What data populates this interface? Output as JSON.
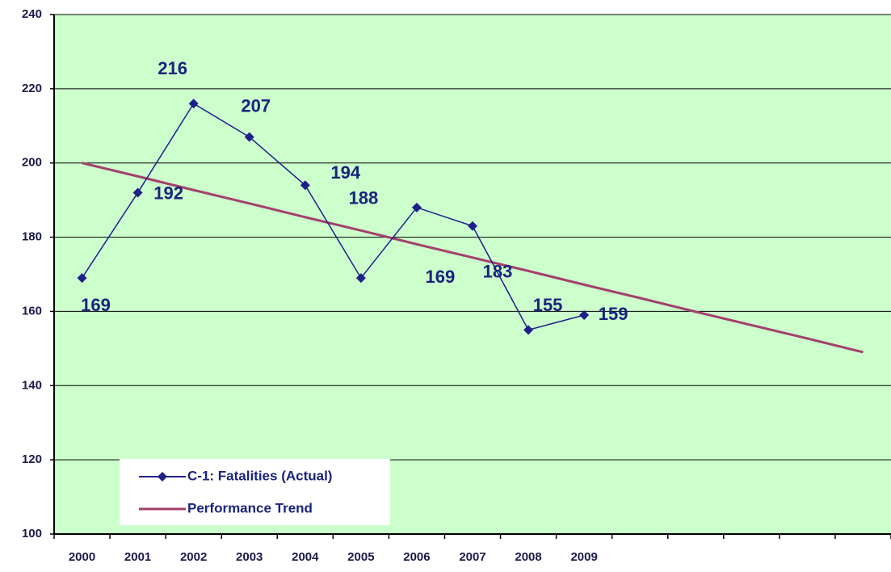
{
  "chart_data": {
    "type": "line",
    "categories": [
      "2000",
      "2001",
      "2002",
      "2003",
      "2004",
      "2005",
      "2006",
      "2007",
      "2008",
      "2009",
      null,
      null,
      null,
      null,
      null
    ],
    "series": [
      {
        "name": "C-1: Fatalities (Actual)",
        "color": "#1f1f8c",
        "marker": "diamond",
        "data_labels": true,
        "values": [
          169,
          192,
          216,
          207,
          194,
          169,
          188,
          183,
          155,
          159,
          null,
          null,
          null,
          null,
          null
        ]
      },
      {
        "name": "Performance Trend",
        "color": "#a3406b",
        "marker": "none",
        "data_labels": false,
        "values": [
          200,
          196.4,
          192.7,
          189.1,
          185.4,
          181.8,
          178.1,
          174.5,
          170.9,
          167.2,
          163.6,
          159.9,
          156.3,
          152.7,
          149
        ]
      }
    ],
    "ylim": [
      100,
      240
    ],
    "yticks": [
      100,
      120,
      140,
      160,
      180,
      200,
      220,
      240
    ],
    "grid": true,
    "legend": "lower left",
    "plot_background": "#ccffcc"
  }
}
